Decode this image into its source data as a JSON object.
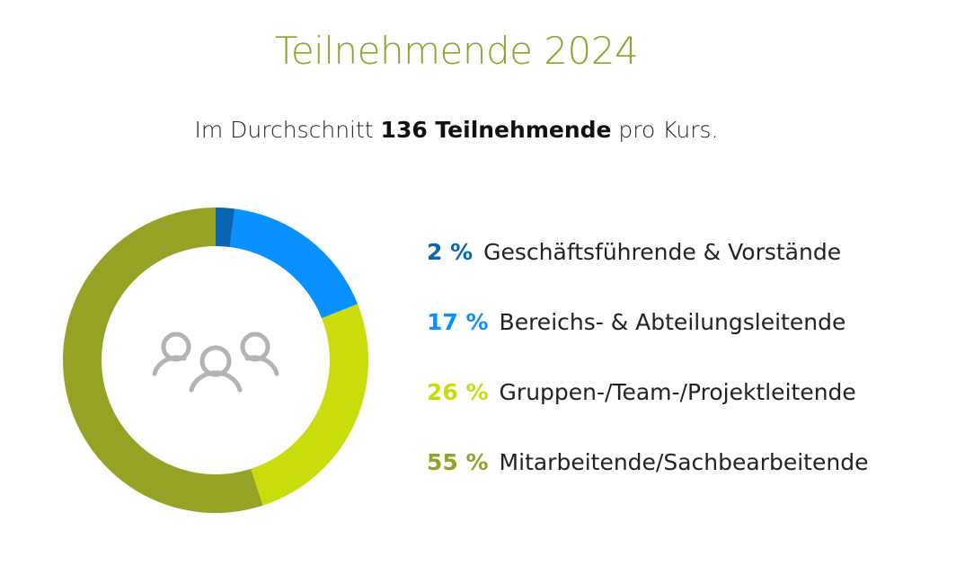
{
  "header": {
    "title": "Teilnehmende 2024",
    "subtitle_pre": "Im Durchschnitt ",
    "subtitle_bold": "136 Teilnehmende",
    "subtitle_post": " pro Kurs."
  },
  "chart_data": {
    "type": "pie",
    "variant": "donut",
    "title": "Teilnehmende 2024",
    "center_icon": "people-group-icon",
    "legend_placement": "right",
    "slices": [
      {
        "label": "Geschäftsführende & Vorstände",
        "value": 2,
        "pct_label": "2 %",
        "color": "#0a66b2"
      },
      {
        "label": "Bereichs- & Abteilungsleitende",
        "value": 17,
        "pct_label": "17 %",
        "color": "#0891ff"
      },
      {
        "label": "Gruppen-/Team-/Projektleitende",
        "value": 26,
        "pct_label": "26 %",
        "color": "#cbdc0c"
      },
      {
        "label": "Mitarbeitende/Sachbearbeitende",
        "value": 55,
        "pct_label": "55 %",
        "color": "#96a225"
      }
    ]
  }
}
